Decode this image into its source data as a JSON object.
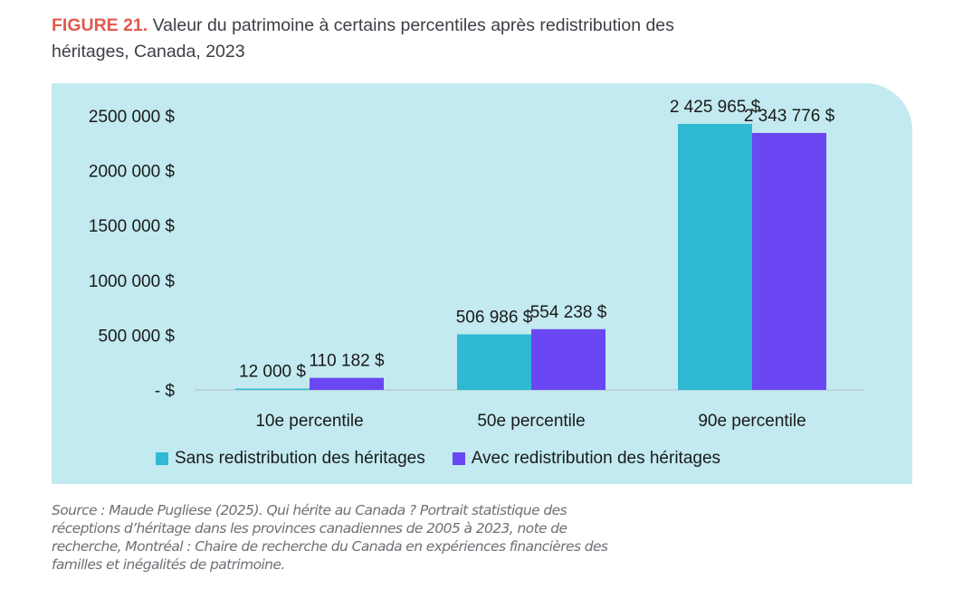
{
  "title": {
    "figure_label": "FIGURE 21.",
    "text": "Valeur du patrimoine à certains percentiles après redistribution des héritages, Canada, 2023"
  },
  "source": "Source : Maude Pugliese (2025). Qui hérite au Canada ? Portrait statistique des réceptions d’héritage dans les provinces canadiennes de 2005 à 2023, note de recherche, Montréal : Chaire de recherche du Canada en expériences financières des familles et inégalités de patrimoine.",
  "chart_data": {
    "type": "bar",
    "categories": [
      "10e percentile",
      "50e percentile",
      "90e percentile"
    ],
    "series": [
      {
        "name": "Sans redistribution des héritages",
        "color": "#2fb9d2",
        "values": [
          12000,
          506986,
          2425965
        ],
        "labels": [
          "12 000  $",
          "506 986  $",
          "2 425 965 $"
        ]
      },
      {
        "name": "Avec redistribution des héritages",
        "color": "#6a47f2",
        "values": [
          110182,
          554238,
          2343776
        ],
        "labels": [
          "110 182  $",
          "554 238  $",
          "2 343 776 $"
        ]
      }
    ],
    "yticks": [
      0,
      500000,
      1000000,
      1500000,
      2000000,
      2500000
    ],
    "ytick_labels": [
      "-    $",
      "500 000  $",
      "1000 000  $",
      "1500 000  $",
      "2000 000  $",
      "2500 000  $"
    ],
    "ylim": [
      0,
      2500000
    ],
    "grid": false,
    "legend": "bottom"
  }
}
